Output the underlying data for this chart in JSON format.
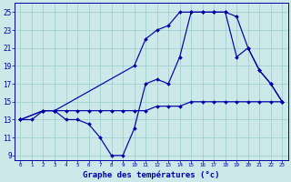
{
  "xlabel": "Graphe des températures (°c)",
  "xlim": [
    -0.5,
    23.5
  ],
  "ylim": [
    8.5,
    26.0
  ],
  "xticks": [
    0,
    1,
    2,
    3,
    4,
    5,
    6,
    7,
    8,
    9,
    10,
    11,
    12,
    13,
    14,
    15,
    16,
    17,
    18,
    19,
    20,
    21,
    22,
    23
  ],
  "yticks": [
    9,
    11,
    13,
    15,
    17,
    19,
    21,
    23,
    25
  ],
  "bg_color": "#cce8e8",
  "line_color": "#0000aa",
  "grid_color": "#99cccc",
  "lines": [
    {
      "x": [
        0,
        1,
        2,
        3,
        4,
        5,
        6,
        7,
        8,
        9,
        10,
        11,
        12,
        13,
        14,
        15,
        16,
        17,
        18,
        19,
        20,
        21,
        22,
        23
      ],
      "y": [
        13,
        13,
        14,
        14,
        13,
        13,
        12.5,
        11,
        9,
        9,
        12,
        17,
        17.5,
        17,
        20,
        25,
        25,
        25,
        25,
        20,
        21,
        18.5,
        17,
        15
      ]
    },
    {
      "x": [
        0,
        2,
        3,
        10,
        11,
        12,
        13,
        14,
        15,
        16,
        17,
        18,
        19,
        20,
        21,
        22,
        23
      ],
      "y": [
        13,
        14,
        14,
        19,
        22,
        23,
        23.5,
        25,
        25,
        25,
        25,
        25,
        24.5,
        21,
        18.5,
        17,
        15
      ]
    },
    {
      "x": [
        0,
        2,
        3,
        4,
        5,
        6,
        7,
        8,
        9,
        10,
        11,
        12,
        13,
        14,
        15,
        16,
        17,
        18,
        19,
        20,
        21,
        22,
        23
      ],
      "y": [
        13,
        14,
        14,
        14,
        14,
        14,
        14,
        14,
        14,
        14,
        14,
        14.5,
        14.5,
        14.5,
        15,
        15,
        15,
        15,
        15,
        15,
        15,
        15,
        15
      ]
    }
  ]
}
